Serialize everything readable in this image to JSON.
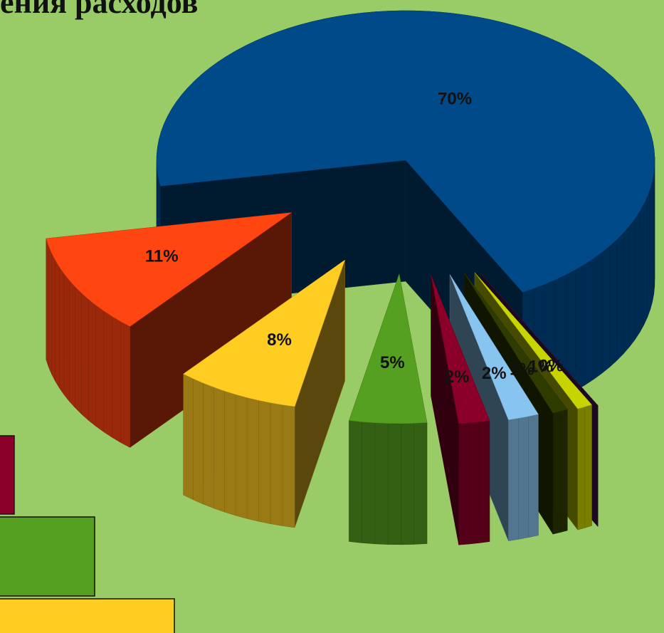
{
  "chart_data": {
    "type": "pie",
    "title": "ения расходов",
    "values": [
      70,
      11,
      8,
      5,
      2,
      2,
      1,
      1,
      0
    ],
    "value_labels": [
      "70%",
      "11%",
      "8%",
      "5%",
      "2%",
      "2%",
      "1%",
      "1%",
      "0%"
    ],
    "colors": [
      "#004a8a",
      "#ff4510",
      "#ffcc22",
      "#55a020",
      "#8a0028",
      "#88c4f0",
      "#2e3c00",
      "#c8d400",
      "#4a1a5a"
    ]
  }
}
